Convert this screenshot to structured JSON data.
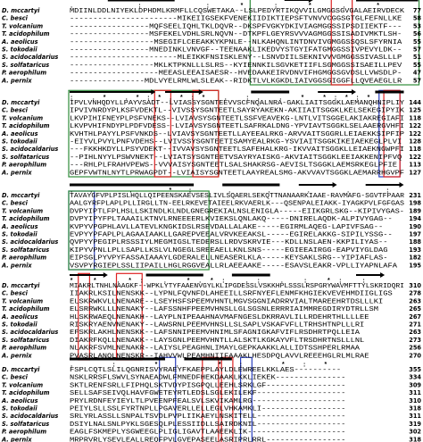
{
  "species": [
    "D. mccartyi",
    "C. besci",
    "T. volcanium",
    "T. acidophilum",
    "A. aeolicus",
    "S. tokodaii",
    "S. acidocaldarius",
    "S. solfataricus",
    "P. aerophilum",
    "A. pernix"
  ],
  "blocks": [
    {
      "consensus": "                                          .   :  :*:*.*          ",
      "sequences": [
        "MDIINLDDLNIYEKLDPHDMLKRMFLLCQSWETAKA--LSLPEDYRTIKQVVILGMGGSGVGALAEIRVDECK",
        "-----------------------MIKEIIGSEKFVENEKIIDIKTIEPSFTVNVVCGGSGTGLFEFNLLKE",
        "-----------------MQFSEELIQHLTKLDQVR--DKSPFVGKYDKIVIAGMGGSSIPSDIIEKTF---",
        "-----------------MSFEKELVDHLSRLNQVN--DTKPFLGEYRSVVVAGMGGSSISADIVMKTLSH-",
        "------------------MSEGIFLCEEAKKYKPNLE--NLKAHQNLINTDNVIVGMGGSSQSLSFYRNIA",
        "-----------------MNEDINKLVNVGF--TEENAAKLIKEDVYSTGYIFATGMGGSSIVPEVYLDK--",
        "-----------------------MLEIKKFNSISKLENY--LSNVDIILSEKNIVVVGMGGSSIVASLLLP",
        "------------------MKLKTPKNLLLSLRS--KYIENNKILSGVKETIIFLSGMGGSSISAEILLPEV",
        "-------------------MEEASLEEAISAESR--HVEDAAKEIRVDNVIFHGMGGSGVDSLLVWSDLP-",
        "----------------MDLVYELRMLWLSLEAK--RIDKTLVLKGKDLIAIVGGSGIGGFLLQVEAEGLLR"
      ],
      "ends": [
        77,
        58,
        53,
        56,
        55,
        57,
        51,
        55,
        47,
        57
      ]
    },
    {
      "consensus": "             : .*  .*:*.*:*      .  :.          .      *  *:*:*",
      "sequences": [
        "IPVLVNHQDYLLPAYVSADT--LVIASSYSGNTEEVVSCFNQALNRA-GAKLIAITSGGKLAEMANQHNIPLIY",
        "IPVIVNRDYPLKSFVDEKTL--VIVSSYSGNTEETLSAYRYAKEKN-AKIIAITSGGKLKELSEKEGIPYIK",
        "LKVPIHIFNEYPLPSFVNEKS--LVIAVSYSGNTEETLSSFVEAVEKG-LNTLVITSGGELAKIAKREGIAFI",
        "LKVPVHIFNDYPLPDFVDESS--LVIAVSYSGNTEETLSAFRKALDNG-YPVIAVTSGGKLSELAAERGVHFI",
        "KVHTHLPAYYLPSFVNKDS--LVIAVSYSGNTEETLLAYEEALRKG-ARVVAITSGGRLLEIAEKKSIPFIP",
        "-EIYVLPVYLPNFVDEHS--LVIVSSYSGNTEETISAMYEALRKG-YSVIAITSGGKIKEIAEKEGLPLVI",
        "---FKKHKDYLLPSYVDEKT--IVVAVSYSGNTEETLSAFEHALKRG-IKVVAITSGGKLLEIAEKNGWPFI",
        "--PIHLNYYLPSWVNEKT--LVIATSYSGNTEETVSAYRYAISKG-AKVIAITSGGKLEEIAKKENIPFVQ",
        "---RHLPLFRAHVPEWS--VVVAISYSGNTEETLSALSHAKRSG-AEVISLTSGGKLAEMSRKEGLPFIE",
        "GEPFVWTNLNYTLPRWAGPDT--LVIAISYSGNTEETLAAYREALSMG-AKVVAVTSGGKLAEMARRHGVPF"
      ],
      "ends": [
        144,
        125,
        118,
        122,
        122,
        128,
        118,
        122,
        113,
        127
      ]
    },
    {
      "consensus": "  ..  .  *:                            .       .  .          .   : ",
      "sequences": [
        "TAVAYGFVPLPISLHQLLQIPEENSKAEVSESLIVLSQAERLSEKQTTNANAARKIAAE-RAVMAFG-SGVTFPAAR",
        "AALGYRFPLAPLPLLIRGLLTN-EELRKEVETAIEELRKVAERLK---QSENPALEIAKK-IYAGKPVLFGFGAS",
        "DVPYIPTLFPLHSLLSKINDLKLNDLGNEGREKIALNSLENIGLA-----EIIKGRLSKG--KIPIVYGAS-",
        "DVPYIPYFPLTAAAILKTNVLRNEEEERLKVIEKSLQNLAKQ-----DNIRELAQDK-ALPIVYGAG--",
        "KVPYVPGPHLAVLLATEVLKNGKIDSLRSEVDALLALAKE-----EGIRMLAQEG-LAPIVFSAG--",
        "EVPYYPFAPLPLAGAAIAAKLLGAREPVEEALVRVKEEAKSL-----EGIRELAKKG-SIPILYSSG--",
        "QVPYYPEGIPLRSSSIYLMEGMIGSLTEDERSLLRDVSKRVIE---KDLLNSLAEN-KKPILIYAS--",
        "KIPYVPNLLPLLSAPLLKSLVLNGEGLSREEAELLKNLSNS-----EGIEEAIRGG-EAPVIYGLDAG",
        "EIPSGLPYVPYFASSAIAAAYLGDERALELLNEASERLKLA-----KEYSAKLSRG--YIPIAFLAS-",
        "VSVPYRGIEPLSSLIIPAILLHGLRGGVEALLRLAEEAAKE-----ESAVSLEAKR-VPLLIYAPNLAFA"
      ],
      "ends": [
        231,
        198,
        189,
        194,
        190,
        197,
        188,
        193,
        182,
        195
      ]
    },
    {
      "consensus": "* *  .*:  .      *.*:    .:       .   :            *:       : ",
      "sequences": [
        "MIAKRLTNHLNAAGKF--WPKLYTYFAAENVGYLKLIPGDESSLVSKKHPLSSSLRSPGRYWAVMFTTYLSKRIDQRI",
        "IIAKRLKSILNENSKK--LYPNLFQVNFDLAHEEILLSRFNYEFLENMFKHGIEKVEVEHMDIIGLIGS",
        "ELSKRWKVLLNENARE--LSEYHSFSPEEMVHNTLMGVSGGNIADRRVIALTMAREEHRTDSLLLKI",
        "ELSRRWKLLLNENAKY--LAFSSNHFPEEMVHNSLLGLSGSNLERRRIAIMMREGDIRYDTRLLSM",
        "HLSKRWAEQLNENAKH--LAYPLNIPEAAHNAVMAFNGESLDKRRAVLILLRDEHRTHLLLLEE",
        "RISKRYAENVNENAKY--LAWSRNLPEEMVHNSLLSLSAPLVSKAFVFLLTRHSHTNPLLLRI",
        "EFSKRLAKHLNENSKK--LAFSNNIPEEMVHNIMLSFAGNIGKAFVIFLRSDHRTPQLLEIA",
        "DIAKRFKQLLNENAKK--LAYSGNLPEEMVHNTLLALSKTLKGKAYVFLTRSDHRTNSLLLNL",
        "NLAKRFSVMLNENAKR--LAIYSLPEAGHNLIMAYLGEPKAAKKLALLIDTSSHPERLRMAA",
        "PVASRLANQLNENSKR--IAHVVWLPEAMHNIIFAAAKLHESDPQLAVVLREEEHGLRLMLRAE"
      ],
      "ends": [
        310,
        278,
        263,
        265,
        267,
        271,
        263,
        273,
        256,
        270
      ]
    },
    {
      "consensus": "              .  :  *.   *:  *:*                      ",
      "sequences": [
        "FSPLCQTLSLILQGNRISVYRAEYFKAEPPLAYLDLEWREELKKLAES----------",
        "NSKLRRSFLSWVLSYNAEADWLFMNEDFHEKDAAKLKKLIEKEK---------------",
        "SKTLRENFSRLLFIPHQLSKTVDYPISGPQLLEEHLSRKLGF-----------------",
        "SELLSAFSEIVQLHAVFGWETEYRTLEDSLSGLEKILEKF-------------------",
        "PRYLRDNFEYIEYLTLPVEENPFEALSVLSKVIKAMLRG--------------------",
        "PEIYLSLLSSLFYRTNPLLPGAVERLLELLEGLVHKAMKLI------------------",
        "SRLYRLASSLLSNPALTSVDLPVPLIIKAEYLNSKITELL-------------------",
        "DSIYLNALSNLPYKLSGESQLPLESSIIDLLSAIRDKNIL-------------------",
        "EAGLFSKMEPLYSGWEEGLPLIGLIGAVTLAAEEKLIK---------------------",
        "MRPRVRLYSEVLEALLREQFPVLGVEPASEELASRIPRLRRL-----------------"
      ],
      "ends": [
        355,
        334,
        309,
        311,
        310,
        318,
        311,
        319,
        302,
        318
      ]
    }
  ]
}
